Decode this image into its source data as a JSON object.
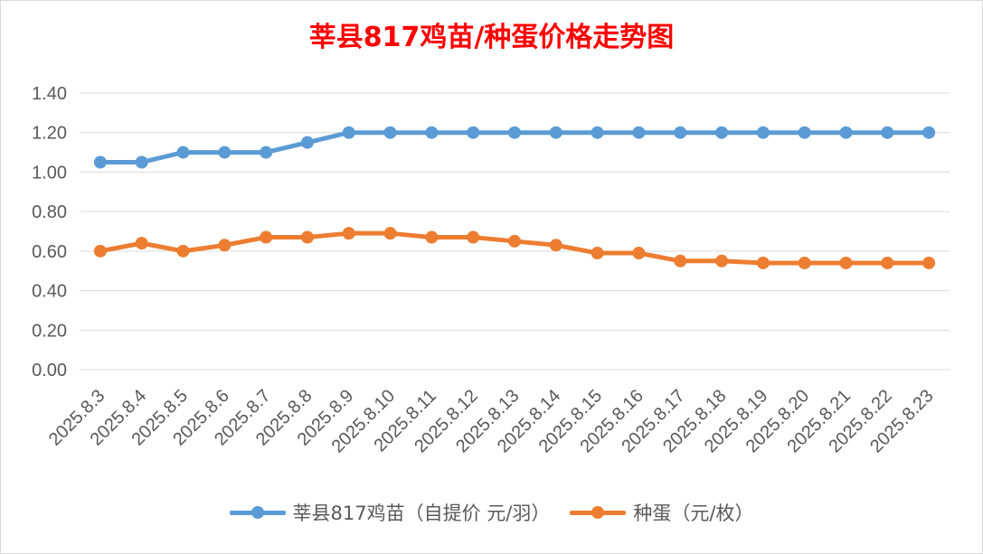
{
  "chart_data": {
    "type": "line",
    "title": "莘县817鸡苗/种蛋价格走势图",
    "categories": [
      "2025.8.3",
      "2025.8.4",
      "2025.8.5",
      "2025.8.6",
      "2025.8.7",
      "2025.8.8",
      "2025.8.9",
      "2025.8.10",
      "2025.8.11",
      "2025.8.12",
      "2025.8.13",
      "2025.8.14",
      "2025.8.15",
      "2025.8.16",
      "2025.8.17",
      "2025.8.18",
      "2025.8.19",
      "2025.8.20",
      "2025.8.21",
      "2025.8.22",
      "2025.8.23"
    ],
    "series": [
      {
        "name": "莘县817鸡苗（自提价 元/羽）",
        "color": "#5b9bd5",
        "values": [
          1.05,
          1.05,
          1.1,
          1.1,
          1.1,
          1.15,
          1.2,
          1.2,
          1.2,
          1.2,
          1.2,
          1.2,
          1.2,
          1.2,
          1.2,
          1.2,
          1.2,
          1.2,
          1.2,
          1.2,
          1.2
        ]
      },
      {
        "name": "种蛋（元/枚）",
        "color": "#ed7d31",
        "values": [
          0.6,
          0.64,
          0.6,
          0.63,
          0.67,
          0.67,
          0.69,
          0.69,
          0.67,
          0.67,
          0.65,
          0.63,
          0.59,
          0.59,
          0.55,
          0.55,
          0.54,
          0.54,
          0.54,
          0.54,
          0.54
        ]
      }
    ],
    "ylim": [
      0,
      1.4
    ],
    "yticks": [
      "0.00",
      "0.20",
      "0.40",
      "0.60",
      "0.80",
      "1.00",
      "1.20",
      "1.40"
    ],
    "grid": true,
    "legend_position": "bottom",
    "xlabel": "",
    "ylabel": ""
  }
}
